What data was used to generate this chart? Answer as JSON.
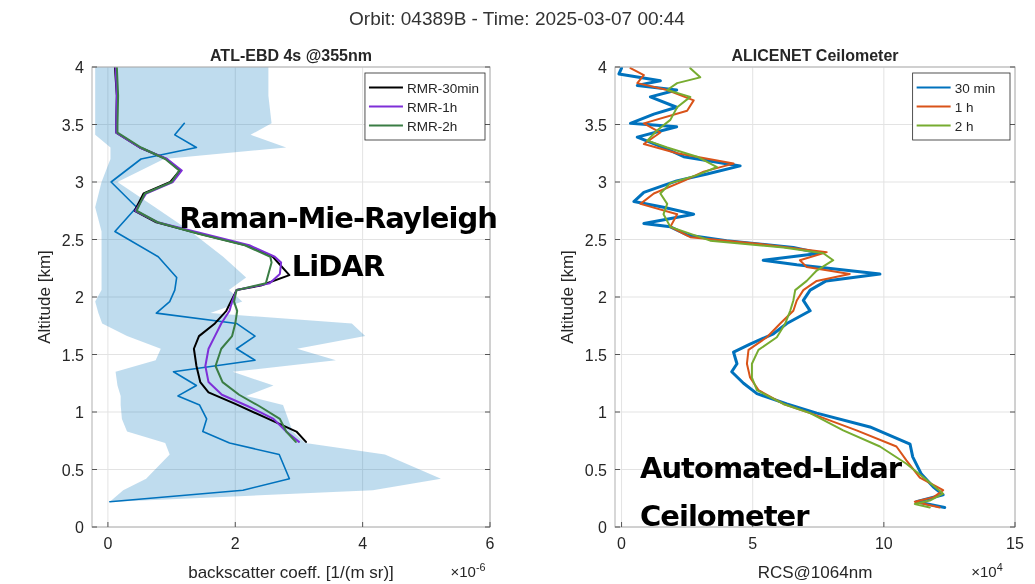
{
  "chart_data": [
    {
      "type": "line",
      "orientation": "horizontal",
      "title": "ATL-EBD 4s @355nm",
      "xlabel": "backscatter coeff. [1/(m sr)]",
      "ylabel": "Altitude [km]",
      "xlim": [
        -0.25,
        6
      ],
      "xticks": [
        0,
        2,
        4,
        6
      ],
      "ylim": [
        0,
        4
      ],
      "yticks": [
        0,
        0.5,
        1,
        1.5,
        2,
        2.5,
        3,
        3.5,
        4
      ],
      "grid": true,
      "legend": "top right",
      "annotations": [
        "Orbit: 04389B - Time: 2025-03-07 00:44",
        "Raman-Mie-Rayleigh LiDAR",
        "×10$^{-6}$"
      ],
      "series": [
        {
          "color": "#0072bd",
          "x": [
            0.22,
            0.32,
            0.42,
            0.63,
            0.73,
            0.83,
            0.94,
            1.06,
            1.14,
            1.23,
            1.35,
            1.45,
            1.55,
            1.66,
            1.77,
            1.86,
            1.96,
            2.06,
            2.17,
            2.35,
            2.57,
            2.78,
            3.0,
            3.2,
            3.3,
            3.41,
            3.51,
            3.75,
            4.0
          ],
          "values": [
            0.03,
            2.12,
            2.85,
            2.69,
            1.91,
            1.49,
            1.55,
            1.44,
            1.1,
            1.39,
            1.03,
            2.31,
            2.02,
            2.31,
            2.02,
            0.76,
            0.97,
            1.05,
            1.08,
            0.79,
            0.11,
            0.45,
            0.05,
            0.52,
            1.39,
            1.05,
            1.2,
            null,
            null
          ],
          "lower": [
            0.03,
            0.24,
            0.6,
            0.97,
            0.9,
            0.3,
            0.22,
            0.2,
            0.2,
            0.15,
            0.12,
            0.75,
            0.83,
            0.3,
            -0.09,
            -0.15,
            -0.2,
            -0.1,
            -0.1,
            -0.1,
            -0.1,
            -0.2,
            -0.1,
            0.04,
            0.04,
            -0.2,
            -0.2,
            -0.2,
            -0.2
          ],
          "upper": [
            0.1,
            4.16,
            5.23,
            4.35,
            3.1,
            2.9,
            2.83,
            2.75,
            2.17,
            2.6,
            1.96,
            3.58,
            2.97,
            4.04,
            3.83,
            1.61,
            2.11,
            1.9,
            2.17,
            1.81,
            1.3,
            0.74,
            0.15,
            0.88,
            2.8,
            2.24,
            2.57,
            2.52,
            2.52
          ]
        },
        {
          "name": "RMR-30min",
          "color": "#000000",
          "x": [
            0.74,
            0.83,
            0.94,
            1.07,
            1.17,
            1.26,
            1.4,
            1.55,
            1.66,
            1.77,
            1.88,
            1.96,
            2.06,
            2.1,
            2.19,
            2.3,
            2.35,
            2.45,
            2.55,
            2.65,
            2.75,
            2.9,
            3.0,
            3.1,
            3.2,
            3.3,
            3.43,
            3.5,
            3.75,
            4.0
          ],
          "values": [
            3.11,
            2.96,
            2.52,
            2.0,
            1.58,
            1.45,
            1.39,
            1.35,
            1.43,
            1.68,
            1.86,
            1.93,
            2.02,
            2.4,
            2.85,
            2.67,
            2.59,
            2.17,
            1.44,
            0.76,
            0.42,
            0.56,
            0.98,
            1.13,
            0.92,
            0.5,
            0.13,
            0.13,
            0.14,
            0.11
          ]
        },
        {
          "name": "RMR-1h",
          "color": "#7e2fd8",
          "x": [
            0.74,
            0.83,
            0.94,
            1.05,
            1.15,
            1.26,
            1.4,
            1.55,
            1.66,
            1.77,
            1.88,
            1.96,
            2.06,
            2.12,
            2.2,
            2.3,
            2.35,
            2.45,
            2.55,
            2.65,
            2.75,
            2.9,
            3.0,
            3.1,
            3.2,
            3.3,
            3.43,
            3.5,
            3.75,
            4.0
          ],
          "values": [
            3.0,
            2.8,
            2.6,
            2.2,
            1.79,
            1.58,
            1.53,
            1.58,
            1.68,
            1.78,
            1.91,
            1.95,
            2.02,
            2.54,
            2.7,
            2.72,
            2.62,
            2.22,
            1.5,
            0.78,
            0.43,
            0.6,
            1.02,
            1.16,
            0.93,
            0.5,
            0.13,
            0.13,
            0.14,
            0.12
          ]
        },
        {
          "name": "RMR-2h",
          "color": "#3a7d44",
          "x": [
            0.74,
            0.83,
            0.94,
            1.05,
            1.15,
            1.26,
            1.4,
            1.55,
            1.66,
            1.77,
            1.88,
            1.96,
            2.06,
            2.12,
            2.3,
            2.35,
            2.45,
            2.55,
            2.65,
            2.75,
            2.9,
            3.0,
            3.1,
            3.2,
            3.3,
            3.43,
            3.5,
            3.75,
            4.0
          ],
          "values": [
            2.95,
            2.8,
            2.7,
            2.38,
            2.06,
            1.8,
            1.69,
            1.78,
            1.95,
            2.0,
            2.03,
            1.98,
            2.02,
            2.48,
            2.57,
            2.55,
            2.15,
            1.42,
            0.78,
            0.45,
            0.58,
            1.0,
            1.12,
            0.9,
            0.52,
            0.15,
            0.15,
            0.16,
            0.14
          ]
        }
      ]
    },
    {
      "type": "line",
      "orientation": "horizontal",
      "title": "ALICENET Ceilometer",
      "xlabel": "RCS@1064nm",
      "ylabel": "Altitude [km]",
      "xlim": [
        -0.25,
        15
      ],
      "xticks": [
        0,
        5,
        10,
        15
      ],
      "ylim": [
        0,
        4
      ],
      "yticks": [
        0,
        0.5,
        1,
        1.5,
        2,
        2.5,
        3,
        3.5,
        4
      ],
      "grid": true,
      "legend": "top right",
      "annotations": [
        "Automated-Lidar Ceilometer",
        "×10$^{4}$"
      ],
      "series": [
        {
          "name": "30 min",
          "color": "#0072bd",
          "x": [
            0.17,
            0.22,
            0.28,
            0.35,
            0.46,
            0.61,
            0.72,
            0.87,
            0.99,
            1.07,
            1.16,
            1.25,
            1.35,
            1.42,
            1.52,
            1.59,
            1.68,
            1.77,
            1.88,
            1.97,
            2.06,
            2.14,
            2.2,
            2.28,
            2.32,
            2.38,
            2.43,
            2.49,
            2.54,
            2.61,
            2.64,
            2.72,
            2.78,
            2.83,
            2.91,
            3.01,
            3.07,
            3.14,
            3.22,
            3.3,
            3.39,
            3.48,
            3.51,
            3.59,
            3.65,
            3.74,
            3.8,
            3.84,
            3.88,
            3.94,
            3.99
          ],
          "values": [
            12.32,
            11.24,
            12.26,
            11.88,
            11.43,
            11.1,
            11.0,
            9.47,
            7.44,
            6.3,
            5.16,
            4.65,
            4.2,
            4.4,
            4.27,
            4.9,
            5.79,
            6.3,
            7.19,
            6.93,
            7.19,
            7.8,
            9.85,
            6.68,
            5.4,
            7.57,
            6.55,
            4.0,
            2.5,
            1.86,
            0.85,
            2.75,
            1.6,
            0.47,
            0.85,
            2.1,
            3.26,
            4.52,
            2.37,
            1.6,
            0.6,
            2.1,
            0.34,
            1.23,
            2.1,
            1.1,
            2.1,
            0.6,
            1.48,
            -0.1,
            0.0
          ]
        },
        {
          "name": "1 h",
          "color": "#d95319",
          "x": [
            0.17,
            0.22,
            0.26,
            0.32,
            0.43,
            0.58,
            0.7,
            0.84,
            0.99,
            1.07,
            1.19,
            1.3,
            1.42,
            1.54,
            1.65,
            1.77,
            1.88,
            1.97,
            2.06,
            2.14,
            2.2,
            2.26,
            2.32,
            2.39,
            2.46,
            2.52,
            2.61,
            2.72,
            2.81,
            2.9,
            3.01,
            3.09,
            3.16,
            3.25,
            3.33,
            3.43,
            3.51,
            3.62,
            3.71,
            3.8,
            3.86,
            3.93,
            3.99
          ],
          "values": [
            12.13,
            11.18,
            11.9,
            12.26,
            11.37,
            10.86,
            10.48,
            8.96,
            7.19,
            6.17,
            5.22,
            4.9,
            4.78,
            4.84,
            5.54,
            6.05,
            6.55,
            6.68,
            6.93,
            7.44,
            8.7,
            7.06,
            6.8,
            7.82,
            5.29,
            2.62,
            1.86,
            2.12,
            0.72,
            1.23,
            2.37,
            3.13,
            4.27,
            2.12,
            0.85,
            1.48,
            0.85,
            2.5,
            2.75,
            1.74,
            0.6,
            0.85,
            0.34
          ]
        },
        {
          "name": "2 h",
          "color": "#77ac30",
          "x": [
            0.17,
            0.2,
            0.23,
            0.29,
            0.41,
            0.55,
            0.7,
            0.84,
            0.99,
            1.07,
            1.19,
            1.3,
            1.42,
            1.54,
            1.65,
            1.77,
            1.88,
            1.97,
            2.06,
            2.14,
            2.23,
            2.32,
            2.38,
            2.43,
            2.49,
            2.61,
            2.72,
            2.81,
            2.9,
            2.99,
            3.06,
            3.13,
            3.22,
            3.3,
            3.36,
            3.45,
            3.54,
            3.65,
            3.74,
            3.8,
            3.86,
            3.91,
            3.99
          ],
          "values": [
            11.75,
            11.18,
            11.75,
            12.26,
            11.62,
            10.86,
            9.85,
            8.45,
            7.19,
            6.17,
            5.16,
            4.97,
            4.97,
            5.22,
            5.92,
            6.24,
            6.43,
            6.55,
            6.62,
            7.06,
            7.44,
            8.07,
            7.69,
            6.17,
            3.38,
            1.86,
            1.6,
            1.74,
            1.48,
            1.86,
            2.88,
            3.64,
            2.88,
            1.74,
            0.98,
            1.36,
            1.86,
            2.12,
            2.62,
            1.74,
            2.12,
            3.0,
            2.62
          ]
        }
      ]
    }
  ]
}
